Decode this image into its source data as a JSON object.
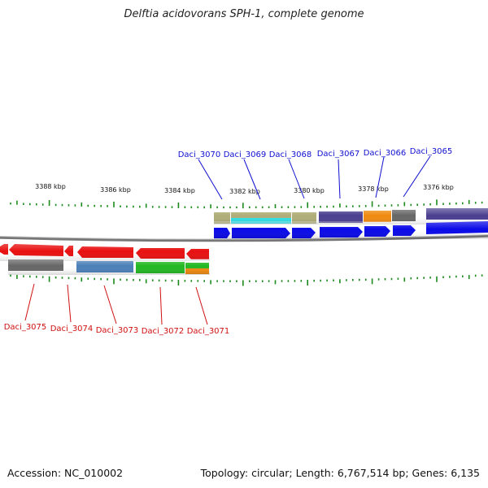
{
  "title": "Delftia acidovorans SPH-1, complete genome",
  "footer": {
    "accession": "Accession: NC_010002",
    "summary": "Topology: circular; Length: 6,767,514 bp; Genes: 6,135"
  },
  "colors": {
    "top_label": "#1010d0",
    "bottom_label": "#d01010",
    "tick": "#1a8a1a",
    "backbone": "#777777",
    "forward_gene": "#0a0ae8",
    "reverse_gene": "#e81010"
  },
  "ruler_labels": [
    "3388 kbp",
    "3386 kbp",
    "3384 kbp",
    "3382 kbp",
    "3380 kbp",
    "3378 kbp",
    "3376 kbp"
  ],
  "top_genes": [
    "Daci_3070",
    "Daci_3069",
    "Daci_3068",
    "Daci_3067",
    "Daci_3066",
    "Daci_3065"
  ],
  "bottom_genes": [
    "Daci_3075",
    "Daci_3074",
    "Daci_3073",
    "Daci_3072",
    "Daci_3071"
  ],
  "category_colors": [
    "#b0ad78",
    "#2ee0e8",
    "#4a3e90",
    "#f08a10",
    "#666666",
    "#4a80b8",
    "#22b822"
  ]
}
